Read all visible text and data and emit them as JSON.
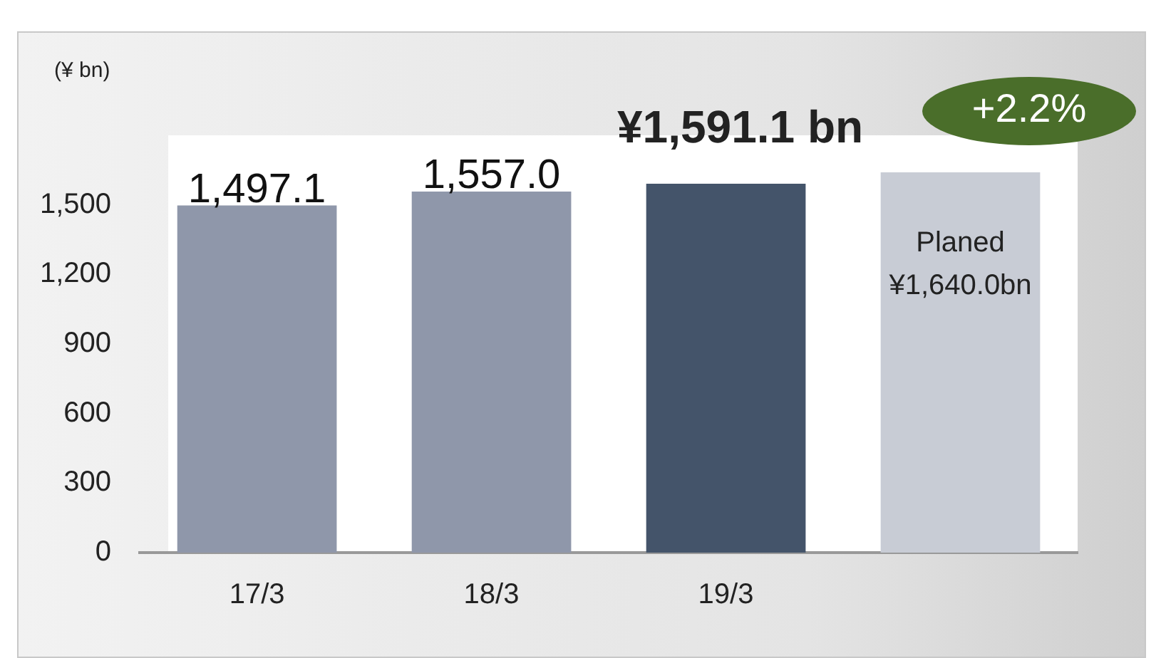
{
  "chart_data": {
    "type": "bar",
    "ylabel": "(¥ bn)",
    "categories": [
      "17/3",
      "18/3",
      "19/3",
      null
    ],
    "values": [
      1497.1,
      1557.0,
      1591.1,
      1640.0
    ],
    "colors": [
      "#8f97aa",
      "#8f97aa",
      "#44546a",
      "#c8ccd5"
    ],
    "value_labels": [
      "1,497.1",
      "1,557.0",
      "¥1,591.1 bn",
      "Planed\n¥1,640.0bn"
    ],
    "annotations": [
      "+2.2%"
    ],
    "ylim": [
      0,
      1800
    ],
    "yticks": [
      0,
      300,
      600,
      900,
      {
        "value": 1200,
        "label": "1,200"
      },
      {
        "value": 1500,
        "label": "1,500"
      }
    ],
    "grid": false,
    "legend": false
  }
}
